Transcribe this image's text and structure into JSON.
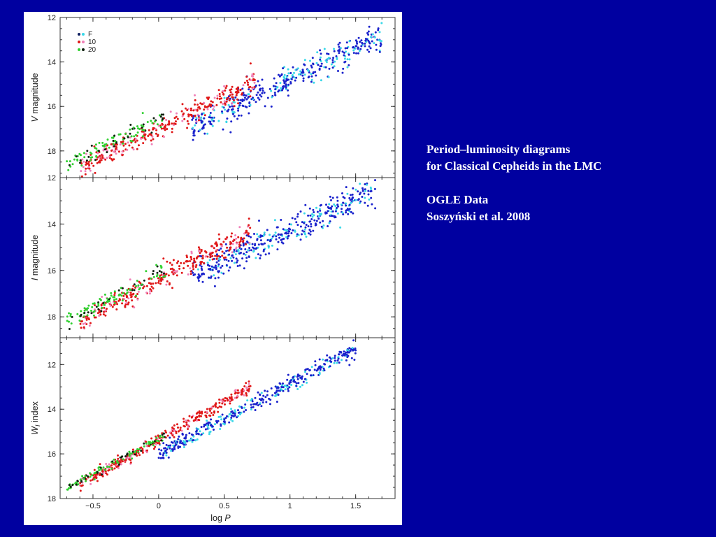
{
  "caption": {
    "line1": "Period–luminosity diagrams",
    "line2": "for Classical Cepheids in the LMC",
    "line3": "OGLE Data",
    "line4": "Soszyński et al. 2008"
  },
  "colors": {
    "background": "#0000a0",
    "F": "#1a22cc",
    "F_bright": "#38d8e8",
    "10": "#e01818",
    "10_pink": "#f080b8",
    "20": "#30d030",
    "20_dark": "#102010"
  },
  "chart_data": [
    {
      "type": "scatter",
      "title": "",
      "xlabel": "log P",
      "ylabel": "V magnitude",
      "ylabel_italic": "V",
      "ylabel_rest": "magnitude",
      "xlim": [
        -0.75,
        1.8
      ],
      "ylim": [
        12,
        19.2
      ],
      "y_inverted": true,
      "yticks": [
        12,
        14,
        16,
        18
      ],
      "legend": {
        "placement": "top-left",
        "entries": [
          "F",
          "10",
          "20"
        ]
      },
      "series": [
        {
          "name": "F",
          "trend": {
            "x": [
              0.25,
              1.7
            ],
            "y": [
              16.9,
              12.8
            ]
          }
        },
        {
          "name": "10",
          "trend": {
            "x": [
              -0.6,
              0.75
            ],
            "y": [
              18.8,
              14.8
            ]
          }
        },
        {
          "name": "20",
          "trend": {
            "x": [
              -0.7,
              0.05
            ],
            "y": [
              18.6,
              16.5
            ]
          }
        }
      ]
    },
    {
      "type": "scatter",
      "title": "",
      "xlabel": "log P",
      "ylabel": "I magnitude",
      "ylabel_italic": "I",
      "ylabel_rest": "magnitude",
      "xlim": [
        -0.75,
        1.8
      ],
      "ylim": [
        12,
        18.9
      ],
      "y_inverted": true,
      "yticks": [
        12,
        14,
        16,
        18
      ],
      "series": [
        {
          "name": "F",
          "trend": {
            "x": [
              0.25,
              1.65
            ],
            "y": [
              16.2,
              12.6
            ]
          }
        },
        {
          "name": "10",
          "trend": {
            "x": [
              -0.6,
              0.7
            ],
            "y": [
              18.2,
              14.3
            ]
          }
        },
        {
          "name": "20",
          "trend": {
            "x": [
              -0.7,
              0.05
            ],
            "y": [
              18.2,
              16.0
            ]
          }
        }
      ]
    },
    {
      "type": "scatter",
      "title": "",
      "xlabel": "log P",
      "ylabel": "W_I index",
      "ylabel_italic": "W",
      "ylabel_sub": "I",
      "ylabel_rest": "index",
      "xlim": [
        -0.75,
        1.8
      ],
      "ylim": [
        10.8,
        18
      ],
      "y_inverted": true,
      "yticks": [
        12,
        14,
        16,
        18
      ],
      "xticks": [
        -0.5,
        0,
        0.5,
        1,
        1.5
      ],
      "xtick_labels": [
        "−0.5",
        "0",
        "0.5",
        "1",
        "1.5"
      ],
      "series": [
        {
          "name": "F",
          "trend": {
            "x": [
              0.0,
              1.5
            ],
            "y": [
              16.0,
              11.3
            ]
          }
        },
        {
          "name": "10",
          "trend": {
            "x": [
              -0.6,
              0.7
            ],
            "y": [
              17.4,
              13.0
            ]
          }
        },
        {
          "name": "20",
          "trend": {
            "x": [
              -0.7,
              0.05
            ],
            "y": [
              17.5,
              15.2
            ]
          }
        }
      ]
    }
  ]
}
